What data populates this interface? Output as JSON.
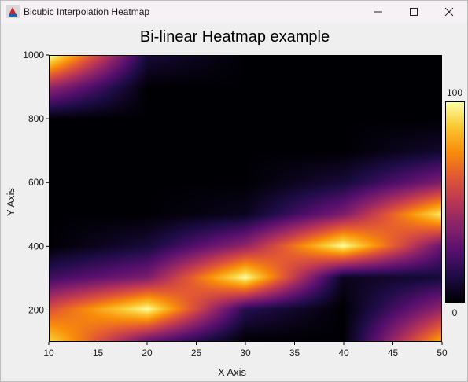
{
  "window": {
    "title": "Bicubic Interpolation Heatmap",
    "controls": [
      "minimize",
      "maximize",
      "close"
    ]
  },
  "chart_data": {
    "type": "heatmap",
    "title": "Bi-linear Heatmap example",
    "xlabel": "X Axis",
    "ylabel": "Y Axis",
    "xlim": [
      10,
      50
    ],
    "ylim": [
      100,
      1000
    ],
    "x_ticks": [
      10,
      15,
      20,
      25,
      30,
      35,
      40,
      45,
      50
    ],
    "y_ticks": [
      200,
      400,
      600,
      800,
      1000
    ],
    "x": [
      10,
      20,
      30,
      40,
      50
    ],
    "y": [
      100,
      200,
      300,
      400,
      500,
      600,
      700,
      800,
      900,
      1000
    ],
    "z": [
      [
        90,
        30,
        0,
        0,
        80
      ],
      [
        60,
        100,
        15,
        0,
        40
      ],
      [
        20,
        35,
        100,
        5,
        10
      ],
      [
        0,
        10,
        40,
        100,
        30
      ],
      [
        0,
        0,
        5,
        35,
        95
      ],
      [
        0,
        0,
        0,
        10,
        35
      ],
      [
        0,
        0,
        0,
        0,
        8
      ],
      [
        0,
        0,
        0,
        0,
        0
      ],
      [
        40,
        0,
        0,
        0,
        0
      ],
      [
        100,
        10,
        0,
        0,
        0
      ]
    ],
    "colormap": "inferno",
    "colorbar": {
      "min": 0,
      "max": 100,
      "min_label": "0",
      "max_label": "100",
      "placement": "right"
    },
    "grid": false
  }
}
